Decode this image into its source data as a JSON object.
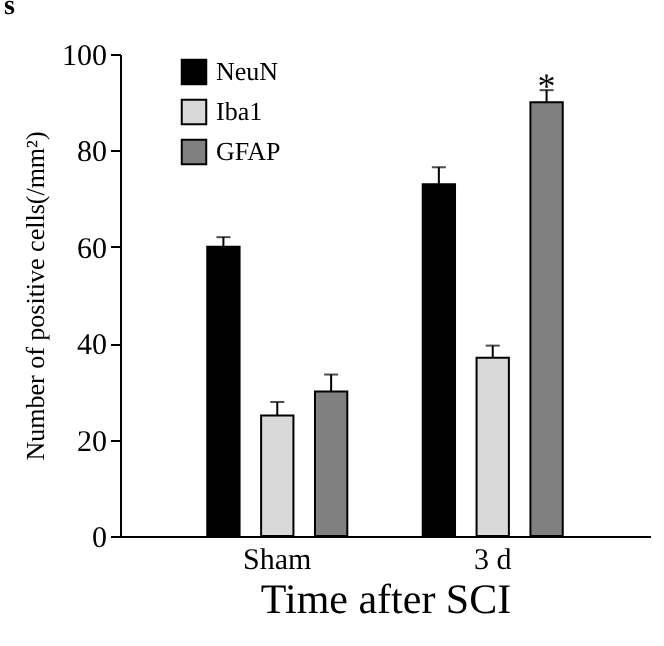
{
  "chart_data": {
    "type": "bar",
    "title": "s",
    "xlabel": "Time after SCI",
    "ylabel": "Number of positive cells(/mm²)",
    "categories": [
      "Sham",
      "3 d"
    ],
    "series": [
      {
        "name": "NeuN",
        "color": "#000000",
        "values": [
          60,
          73
        ],
        "errors": [
          [
            60,
            62
          ],
          [
            73,
            76.5
          ]
        ]
      },
      {
        "name": "Iba1",
        "color": "#d9d9d9",
        "values": [
          25,
          37
        ],
        "errors": [
          [
            25,
            27.8
          ],
          [
            37,
            39.5
          ]
        ]
      },
      {
        "name": "GFAP",
        "color": "#808080",
        "values": [
          30,
          90
        ],
        "errors": [
          [
            30,
            33.5
          ],
          [
            90,
            92.5
          ]
        ]
      }
    ],
    "ylim": [
      0,
      100
    ],
    "yticks": [
      0,
      20,
      40,
      60,
      80,
      100
    ],
    "legend": "top left",
    "annotations": [
      "*"
    ]
  }
}
